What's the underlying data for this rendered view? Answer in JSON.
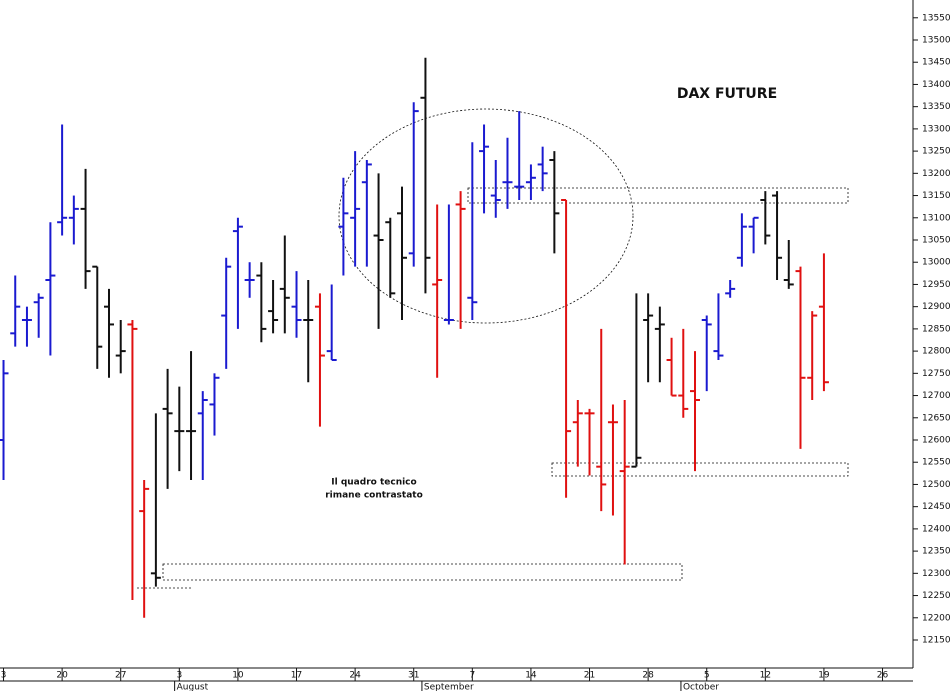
{
  "chart_data": {
    "type": "ohlc",
    "title": "DAX FUTURE",
    "annotations": [
      "Il quadro tecnico",
      "rimane contrastato"
    ],
    "x": [
      0,
      1,
      2,
      3,
      4,
      5,
      6,
      7,
      8,
      9,
      10,
      11,
      12,
      13,
      14,
      15,
      16,
      17,
      18,
      19,
      20,
      21,
      22,
      23,
      24,
      25,
      26,
      27,
      28,
      29,
      30,
      31,
      32,
      33,
      34,
      35,
      36,
      37,
      38,
      39,
      40,
      41,
      42,
      43,
      44,
      45,
      46,
      47,
      48,
      49,
      50,
      51,
      52,
      53,
      54,
      55,
      56,
      57,
      58,
      59,
      60,
      61,
      62,
      63,
      64,
      65,
      66,
      67,
      68,
      69,
      70
    ],
    "open": [
      12600,
      12840,
      12870,
      12910,
      12960,
      13090,
      13100,
      13120,
      12990,
      12900,
      12790,
      12860,
      12440,
      12300,
      12670,
      12620,
      12620,
      12660,
      12680,
      12880,
      13070,
      12960,
      12970,
      12890,
      12940,
      12900,
      12870,
      12900,
      12800,
      13080,
      13100,
      13180,
      13060,
      13090,
      13110,
      13020,
      13370,
      12950,
      12870,
      13130,
      12920,
      13250,
      13150,
      13180,
      13170,
      13180,
      13220,
      13230,
      13140,
      12640,
      12660,
      12540,
      12640,
      12530,
      12540,
      12870,
      12850,
      12780,
      12700,
      12710,
      12870,
      12800,
      12930,
      13010,
      13080,
      13140,
      13150,
      12960,
      12980,
      12740,
      12900
    ],
    "high": [
      12780,
      12970,
      12900,
      12930,
      13090,
      13310,
      13150,
      13210,
      12990,
      12940,
      12870,
      12870,
      12510,
      12660,
      12760,
      12720,
      12800,
      12710,
      12750,
      13010,
      13100,
      13000,
      13000,
      12960,
      13060,
      12980,
      12960,
      12930,
      12950,
      13190,
      13250,
      13230,
      13200,
      13100,
      13170,
      13360,
      13460,
      13130,
      13130,
      13160,
      13270,
      13310,
      13230,
      13280,
      13340,
      13220,
      13260,
      13250,
      13140,
      12690,
      12670,
      12850,
      12680,
      12690,
      12930,
      12930,
      12900,
      12830,
      12850,
      12800,
      12880,
      12930,
      12960,
      13110,
      13100,
      13160,
      13160,
      13050,
      12990,
      12890,
      13020
    ],
    "low": [
      12510,
      12810,
      12810,
      12830,
      12790,
      13060,
      13040,
      12940,
      12760,
      12740,
      12750,
      12240,
      12200,
      12270,
      12490,
      12530,
      12510,
      12510,
      12610,
      12760,
      12850,
      12920,
      12820,
      12840,
      12840,
      12830,
      12730,
      12630,
      12780,
      12970,
      12990,
      12990,
      12850,
      12920,
      12870,
      12990,
      12930,
      12740,
      12860,
      12850,
      12870,
      13110,
      13100,
      13120,
      13140,
      13140,
      13160,
      13020,
      12470,
      12540,
      12520,
      12440,
      12430,
      12320,
      12540,
      12730,
      12730,
      12700,
      12650,
      12530,
      12710,
      12780,
      12920,
      12990,
      13020,
      13040,
      12960,
      12940,
      12580,
      12690,
      12710
    ],
    "close": [
      12750,
      12900,
      12870,
      12920,
      12970,
      13100,
      13120,
      12980,
      12810,
      12860,
      12800,
      12850,
      12490,
      12290,
      12660,
      12620,
      12620,
      12690,
      12740,
      12990,
      13080,
      12960,
      12850,
      12870,
      12920,
      12870,
      12870,
      12790,
      12780,
      13110,
      13120,
      13220,
      13050,
      12930,
      13010,
      13340,
      13010,
      12960,
      12870,
      13120,
      12910,
      13260,
      13140,
      13180,
      13170,
      13190,
      13200,
      13110,
      12620,
      12660,
      12660,
      12500,
      12640,
      12540,
      12560,
      12880,
      12860,
      12700,
      12670,
      12690,
      12860,
      12790,
      12940,
      13080,
      13100,
      13060,
      13010,
      12950,
      12740,
      12880,
      12730
    ],
    "colors": [
      "#1a1ad0",
      "#1a1ad0",
      "#1a1ad0",
      "#1a1ad0",
      "#1a1ad0",
      "#1a1ad0",
      "#1a1ad0",
      "#111111",
      "#111111",
      "#111111",
      "#111111",
      "#e01010",
      "#e01010",
      "#111111",
      "#111111",
      "#111111",
      "#111111",
      "#1a1ad0",
      "#1a1ad0",
      "#1a1ad0",
      "#1a1ad0",
      "#1a1ad0",
      "#111111",
      "#111111",
      "#111111",
      "#1a1ad0",
      "#111111",
      "#e01010",
      "#1a1ad0",
      "#1a1ad0",
      "#1a1ad0",
      "#1a1ad0",
      "#111111",
      "#111111",
      "#111111",
      "#1a1ad0",
      "#111111",
      "#e01010",
      "#1a1ad0",
      "#e01010",
      "#1a1ad0",
      "#1a1ad0",
      "#1a1ad0",
      "#1a1ad0",
      "#1a1ad0",
      "#1a1ad0",
      "#1a1ad0",
      "#111111",
      "#e01010",
      "#e01010",
      "#e01010",
      "#e01010",
      "#e01010",
      "#e01010",
      "#111111",
      "#111111",
      "#111111",
      "#e01010",
      "#e01010",
      "#e01010",
      "#1a1ad0",
      "#1a1ad0",
      "#1a1ad0",
      "#1a1ad0",
      "#1a1ad0",
      "#111111",
      "#111111",
      "#111111",
      "#e01010",
      "#e01010",
      "#e01010"
    ],
    "xlim": [
      -0.3,
      77.6
    ],
    "xticks": [
      {
        "value": 0,
        "label": "3"
      },
      {
        "value": 5,
        "label": "20"
      },
      {
        "value": 10,
        "label": "27"
      },
      {
        "value": 15,
        "label": "3"
      },
      {
        "value": 20,
        "label": "10"
      },
      {
        "value": 25,
        "label": "17"
      },
      {
        "value": 30,
        "label": "24"
      },
      {
        "value": 35,
        "label": "31"
      },
      {
        "value": 40,
        "label": "7"
      },
      {
        "value": 45,
        "label": "14"
      },
      {
        "value": 50,
        "label": "21"
      },
      {
        "value": 55,
        "label": "28"
      },
      {
        "value": 60,
        "label": "5"
      },
      {
        "value": 65,
        "label": "12"
      },
      {
        "value": 70,
        "label": "19"
      },
      {
        "value": 75,
        "label": "26"
      }
    ],
    "months": [
      {
        "value": 14.6,
        "label": "August"
      },
      {
        "value": 35.7,
        "label": "September"
      },
      {
        "value": 57.8,
        "label": "October"
      }
    ],
    "ylim": [
      12087,
      13590
    ],
    "yticks": [
      12150,
      12200,
      12250,
      12300,
      12350,
      12400,
      12450,
      12500,
      12550,
      12600,
      12650,
      12700,
      12750,
      12800,
      12850,
      12900,
      12950,
      13000,
      13050,
      13100,
      13150,
      13200,
      13250,
      13300,
      13350,
      13400,
      13450,
      13500,
      13550
    ]
  }
}
